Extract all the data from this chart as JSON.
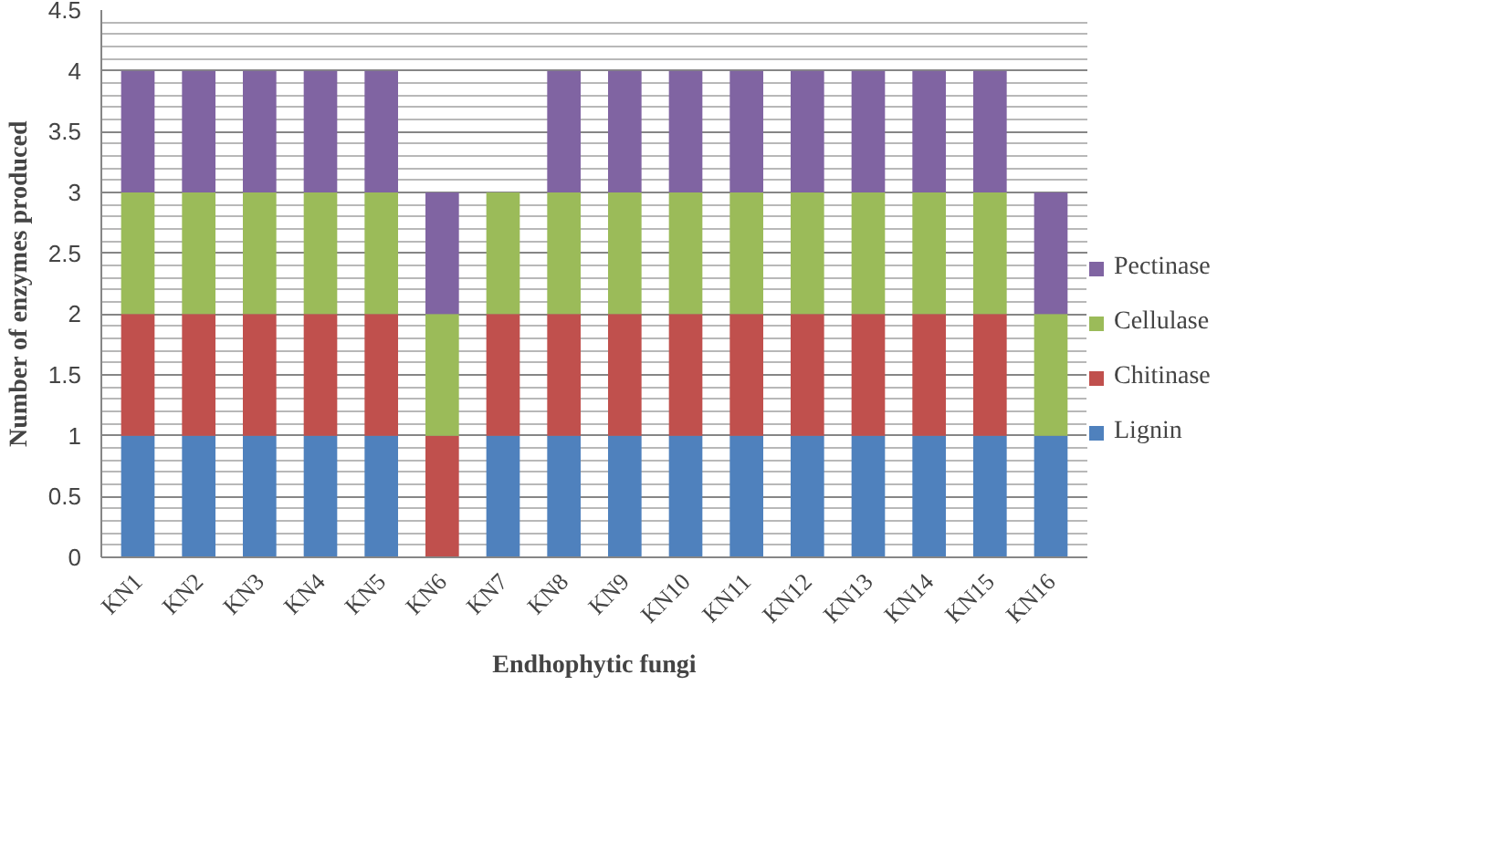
{
  "chart_data": {
    "type": "bar",
    "stacked": true,
    "xlabel": "Endhophytic fungi",
    "ylabel": "Number of enzymes produced",
    "categories": [
      "KN1",
      "KN2",
      "KN3",
      "KN4",
      "KN5",
      "KN6",
      "KN7",
      "KN8",
      "KN9",
      "KN10",
      "KN11",
      "KN12",
      "KN13",
      "KN14",
      "KN15",
      "KN16"
    ],
    "series": [
      {
        "name": "Lignin",
        "color": "#4f81bd",
        "values": [
          1,
          1,
          1,
          1,
          1,
          0,
          1,
          1,
          1,
          1,
          1,
          1,
          1,
          1,
          1,
          1
        ]
      },
      {
        "name": "Chitinase",
        "color": "#c0504d",
        "values": [
          1,
          1,
          1,
          1,
          1,
          1,
          1,
          1,
          1,
          1,
          1,
          1,
          1,
          1,
          1,
          0
        ]
      },
      {
        "name": "Cellulase",
        "color": "#9bbb59",
        "values": [
          1,
          1,
          1,
          1,
          1,
          1,
          1,
          1,
          1,
          1,
          1,
          1,
          1,
          1,
          1,
          1
        ]
      },
      {
        "name": "Pectinase",
        "color": "#8064a2",
        "values": [
          1,
          1,
          1,
          1,
          1,
          1,
          0,
          1,
          1,
          1,
          1,
          1,
          1,
          1,
          1,
          1
        ]
      }
    ],
    "ylim": [
      0,
      4.5
    ],
    "yticks": [
      0,
      0.5,
      1,
      1.5,
      2,
      2.5,
      3,
      3.5,
      4,
      4.5
    ],
    "grid": "y",
    "legend": "right"
  }
}
